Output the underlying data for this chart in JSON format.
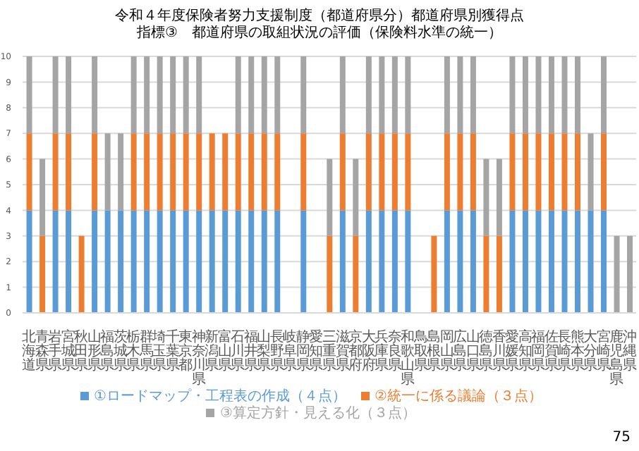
{
  "chart_data": {
    "type": "bar",
    "title": "令和４年度保険者努力支援制度（都道府県分）都道府県別獲得点",
    "subtitle": "指標③　都道府県の取組状況の評価（保険料水準の統一）",
    "categories": [
      "北海道",
      "青森県",
      "岩手県",
      "宮城県",
      "秋田県",
      "山形県",
      "福島県",
      "茨城県",
      "栃木県",
      "群馬県",
      "埼玉県",
      "千葉県",
      "東京都",
      "神奈川県",
      "新潟県",
      "富山県",
      "石川県",
      "福井県",
      "山梨県",
      "長野県",
      "岐阜県",
      "静岡県",
      "愛知県",
      "三重県",
      "滋賀県",
      "京都府",
      "大阪府",
      "兵庫県",
      "奈良県",
      "和歌山県",
      "鳥取県",
      "島根県",
      "岡山県",
      "広島県",
      "山口県",
      "徳島県",
      "香川県",
      "愛媛県",
      "高知県",
      "福岡県",
      "佐賀県",
      "長崎県",
      "熊本県",
      "大分県",
      "宮崎県",
      "鹿児島県",
      "沖縄県"
    ],
    "stacked": true,
    "series": [
      {
        "name": "①ロードマップ・工程表の作成（４点）",
        "color": "#5b9bd5",
        "values": [
          4,
          0,
          4,
          4,
          0,
          4,
          4,
          4,
          4,
          4,
          4,
          4,
          4,
          4,
          4,
          4,
          4,
          4,
          4,
          4,
          0,
          4,
          0,
          0,
          4,
          0,
          4,
          4,
          4,
          4,
          0,
          0,
          4,
          4,
          4,
          0,
          0,
          4,
          4,
          4,
          4,
          4,
          4,
          4,
          4,
          0,
          0
        ]
      },
      {
        "name": "②統一に係る議論（３点）",
        "color": "#ed7d31",
        "values": [
          3,
          3,
          3,
          3,
          3,
          3,
          0,
          0,
          3,
          3,
          3,
          3,
          3,
          3,
          3,
          3,
          3,
          3,
          3,
          3,
          0,
          3,
          0,
          3,
          3,
          3,
          3,
          3,
          3,
          3,
          0,
          3,
          3,
          3,
          3,
          3,
          3,
          3,
          3,
          3,
          3,
          3,
          3,
          0,
          3,
          0,
          0
        ]
      },
      {
        "name": "③算定方針・見える化（３点）",
        "color": "#a5a5a5",
        "values": [
          3,
          3,
          3,
          3,
          0,
          3,
          3,
          3,
          3,
          3,
          3,
          3,
          3,
          3,
          0,
          0,
          3,
          3,
          3,
          3,
          0,
          3,
          0,
          3,
          3,
          3,
          3,
          3,
          3,
          3,
          0,
          0,
          3,
          3,
          3,
          3,
          3,
          3,
          3,
          3,
          3,
          3,
          3,
          3,
          3,
          3,
          3
        ]
      }
    ],
    "ylim": [
      0,
      10
    ],
    "yticks": [
      0,
      1,
      2,
      3,
      4,
      5,
      6,
      7,
      8,
      9,
      10
    ],
    "grid": "y",
    "legend": "bottom",
    "annotations": [
      "75"
    ]
  }
}
